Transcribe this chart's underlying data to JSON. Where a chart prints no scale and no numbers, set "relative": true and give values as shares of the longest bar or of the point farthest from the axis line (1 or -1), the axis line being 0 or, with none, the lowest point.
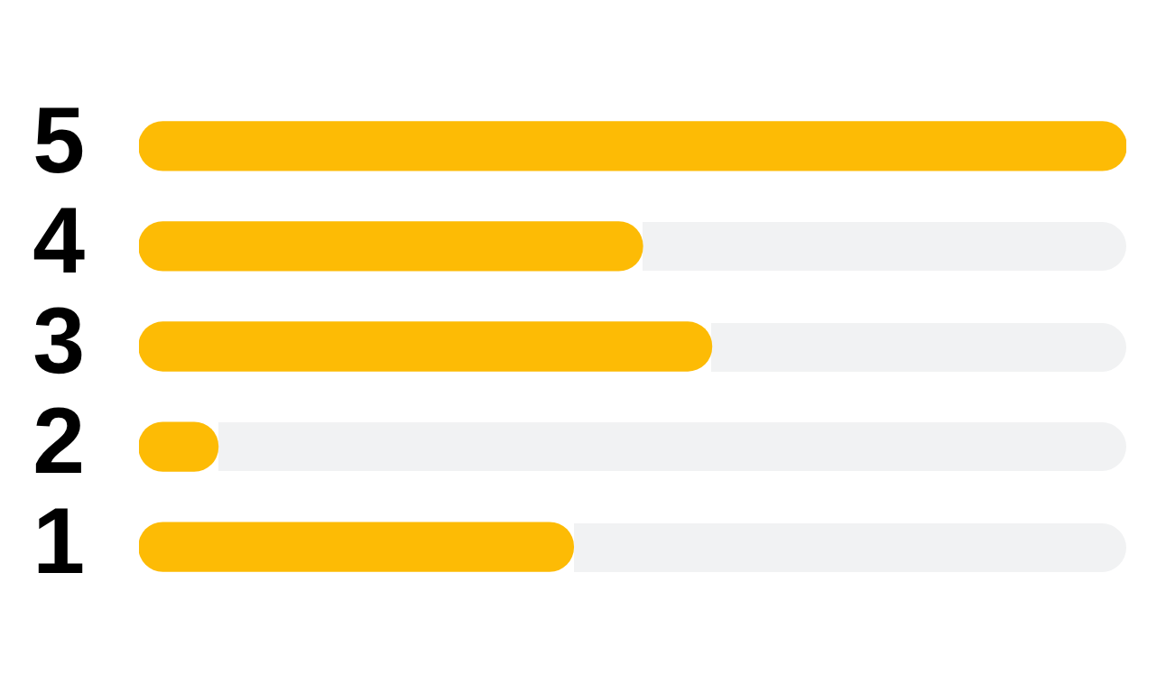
{
  "chart_data": {
    "type": "bar",
    "orientation": "horizontal",
    "relative": true,
    "categories": [
      "5",
      "4",
      "3",
      "2",
      "1"
    ],
    "values": [
      1,
      0.51,
      0.58,
      0.08,
      0.44
    ],
    "color": "#fdbb05"
  }
}
